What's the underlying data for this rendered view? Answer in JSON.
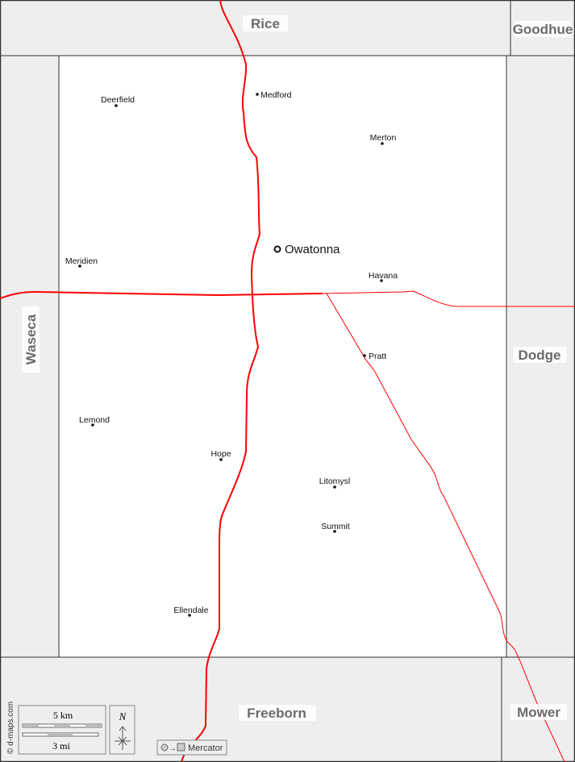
{
  "counties": {
    "rice": "Rice",
    "goodhue": "Goodhue",
    "waseca": "Waseca",
    "dodge": "Dodge",
    "freeborn": "Freeborn",
    "mower": "Mower"
  },
  "county_seat": "Owatonna",
  "towns": [
    "Deerfield",
    "Medford",
    "Merton",
    "Meridien",
    "Havana",
    "Pratt",
    "Lemond",
    "Hope",
    "Litomysl",
    "Summit",
    "Ellendale"
  ],
  "scale": {
    "km": "5 km",
    "mi": "3 mi"
  },
  "north_label": "N",
  "projection": "Mercator",
  "credit": "© d-maps.com",
  "colors": {
    "road": "#ff0000",
    "neighbor": "#eeeeee",
    "county": "#ffffff",
    "label": "#6b6b6b"
  }
}
